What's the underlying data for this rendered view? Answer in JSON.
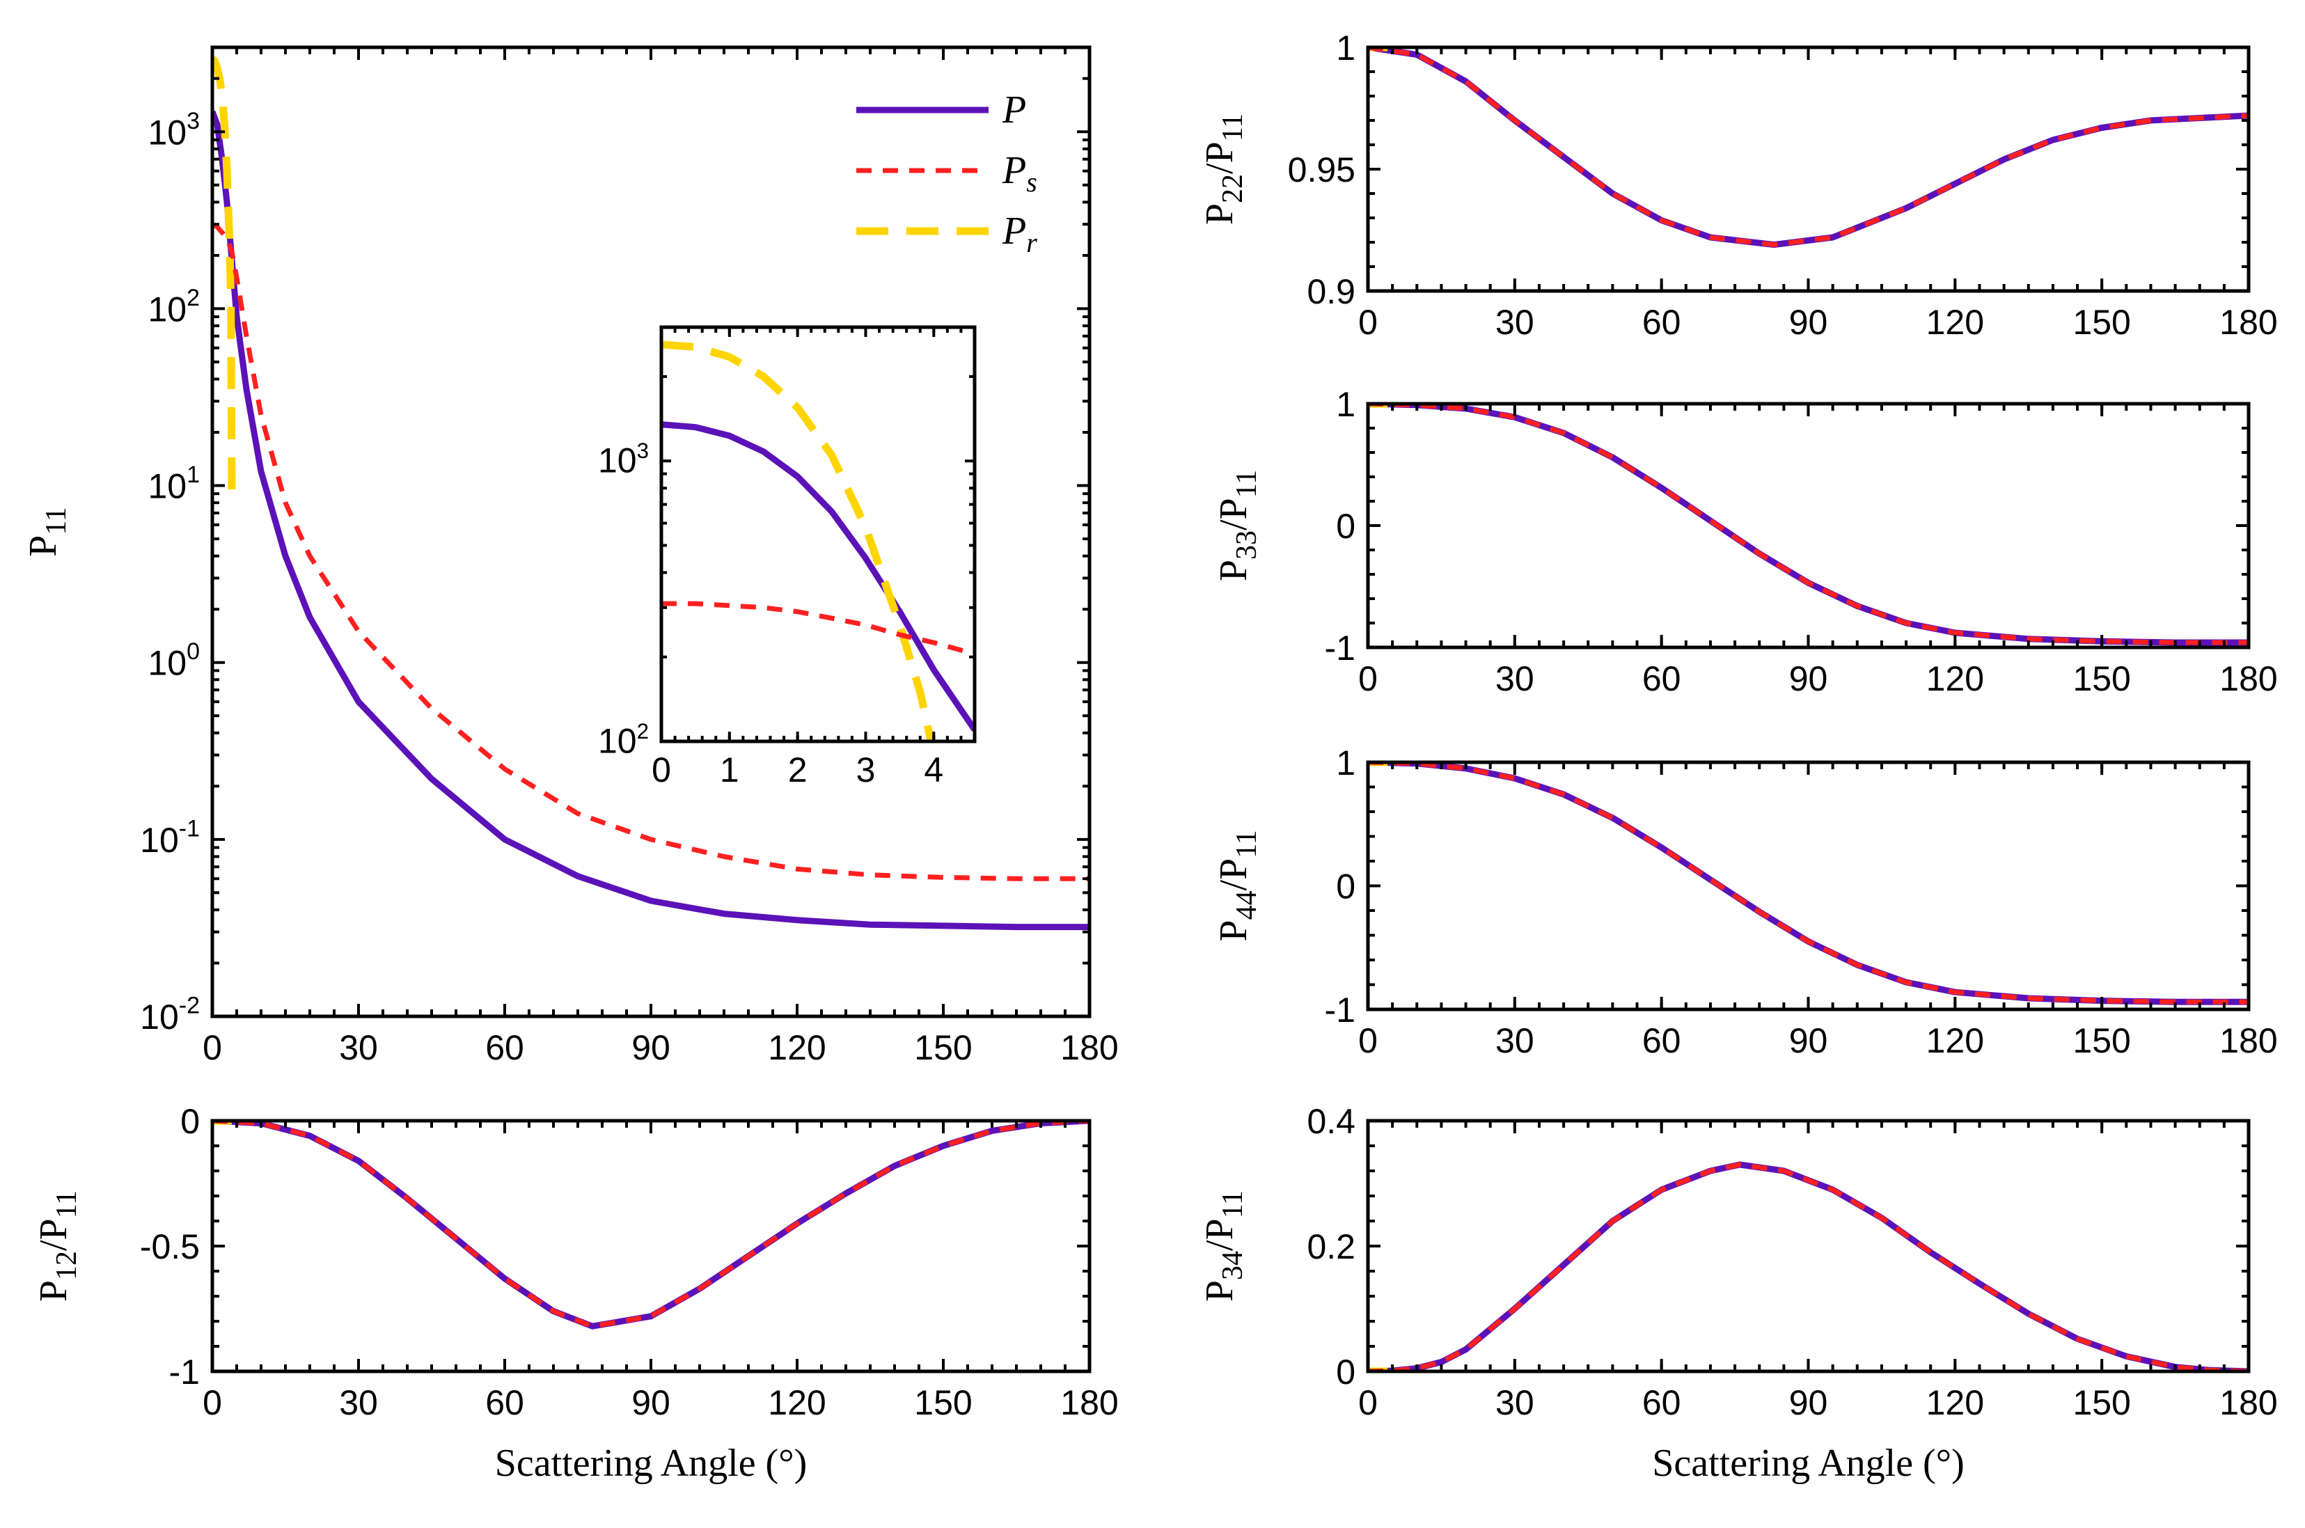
{
  "colors": {
    "P": "#5b12b8",
    "P_s": "#ff2020",
    "P_r": "#ffd400",
    "axis": "#000000"
  },
  "legend": {
    "placement": "top-right of P11 panel",
    "entries": [
      {
        "key": "P",
        "base": "P",
        "sub": "",
        "style": "solid"
      },
      {
        "key": "P_s",
        "base": "P",
        "sub": "s",
        "style": "short-dash"
      },
      {
        "key": "P_r",
        "base": "P",
        "sub": "r",
        "style": "long-dash"
      }
    ]
  },
  "chart_data": [
    {
      "id": "p11",
      "type": "line",
      "yscale": "log",
      "ylabel": {
        "base": "P",
        "sub": "11",
        "tail": ""
      },
      "xlabel": "",
      "xlim": [
        0,
        180
      ],
      "ylim": [
        0.01,
        3000
      ],
      "xticks": [
        0,
        30,
        60,
        90,
        120,
        150,
        180
      ],
      "yticks": [
        {
          "v": 0.01,
          "base": "10",
          "exp": "-2"
        },
        {
          "v": 0.1,
          "base": "10",
          "exp": "-1"
        },
        {
          "v": 1,
          "base": "10",
          "exp": "0"
        },
        {
          "v": 10,
          "base": "10",
          "exp": "1"
        },
        {
          "v": 100,
          "base": "10",
          "exp": "2"
        },
        {
          "v": 1000,
          "base": "10",
          "exp": "3"
        }
      ],
      "series": [
        {
          "key": "P",
          "x": [
            0,
            1,
            2,
            3,
            4,
            5,
            7,
            10,
            15,
            20,
            30,
            45,
            60,
            75,
            90,
            105,
            120,
            135,
            150,
            165,
            180
          ],
          "y": [
            1300,
            1100,
            700,
            400,
            190,
            90,
            35,
            12,
            4,
            1.8,
            0.6,
            0.22,
            0.1,
            0.062,
            0.045,
            0.038,
            0.035,
            0.033,
            0.0325,
            0.032,
            0.032
          ]
        },
        {
          "key": "P_s",
          "x": [
            0,
            1,
            2,
            3,
            4,
            5,
            7,
            10,
            15,
            20,
            30,
            45,
            60,
            75,
            90,
            105,
            120,
            135,
            150,
            165,
            180
          ],
          "y": [
            300,
            290,
            270,
            250,
            210,
            150,
            70,
            25,
            8,
            4,
            1.5,
            0.55,
            0.25,
            0.14,
            0.1,
            0.08,
            0.068,
            0.063,
            0.061,
            0.06,
            0.06
          ]
        },
        {
          "key": "P_r",
          "x": [
            0,
            0.5,
            1,
            1.5,
            2,
            2.5,
            3,
            3.5,
            3.8,
            4
          ],
          "y": [
            2600,
            2500,
            2300,
            2000,
            1600,
            1100,
            600,
            250,
            120,
            9
          ]
        }
      ]
    },
    {
      "id": "inset",
      "type": "line",
      "yscale": "log",
      "ylabel": {
        "base": "",
        "sub": "",
        "tail": ""
      },
      "xlim": [
        0,
        4.6
      ],
      "ylim": [
        100,
        3000
      ],
      "xticks": [
        0,
        1,
        2,
        3,
        4
      ],
      "yticks": [
        {
          "v": 100,
          "base": "10",
          "exp": "2"
        },
        {
          "v": 1000,
          "base": "10",
          "exp": "3"
        }
      ],
      "series": [
        {
          "key": "P",
          "x": [
            0,
            0.5,
            1,
            1.5,
            2,
            2.5,
            3,
            3.5,
            4,
            4.6
          ],
          "y": [
            1350,
            1320,
            1230,
            1080,
            880,
            660,
            450,
            290,
            180,
            110
          ]
        },
        {
          "key": "P_s",
          "x": [
            0,
            0.5,
            1,
            1.5,
            2,
            2.5,
            3,
            3.5,
            4,
            4.6
          ],
          "y": [
            310,
            310,
            305,
            300,
            290,
            275,
            260,
            240,
            225,
            205
          ]
        },
        {
          "key": "P_r",
          "x": [
            0,
            0.5,
            1,
            1.5,
            2,
            2.5,
            3,
            3.5,
            3.8,
            4
          ],
          "y": [
            2600,
            2550,
            2350,
            2000,
            1550,
            1050,
            580,
            260,
            150,
            90
          ]
        }
      ]
    },
    {
      "id": "p12",
      "type": "line",
      "yscale": "linear",
      "ylabel": {
        "base": "P",
        "sub": "12",
        "tail": "/P",
        "sub2": "11"
      },
      "xlabel": "Scattering Angle (°)",
      "xlim": [
        0,
        180
      ],
      "ylim": [
        -1,
        0
      ],
      "xticks": [
        0,
        30,
        60,
        90,
        120,
        150,
        180
      ],
      "yticks": [
        {
          "v": -1,
          "t": "-1"
        },
        {
          "v": -0.5,
          "t": "-0.5"
        },
        {
          "v": 0,
          "t": "0"
        }
      ],
      "series": [
        {
          "key": "P",
          "x": [
            0,
            10,
            20,
            30,
            40,
            50,
            60,
            70,
            78,
            90,
            100,
            110,
            120,
            130,
            140,
            150,
            160,
            170,
            180
          ],
          "y": [
            0,
            -0.01,
            -0.06,
            -0.16,
            -0.31,
            -0.47,
            -0.63,
            -0.76,
            -0.82,
            -0.78,
            -0.67,
            -0.54,
            -0.41,
            -0.29,
            -0.18,
            -0.1,
            -0.04,
            -0.01,
            0
          ]
        },
        {
          "key": "P_s",
          "x": [
            0,
            10,
            20,
            30,
            40,
            50,
            60,
            70,
            78,
            90,
            100,
            110,
            120,
            130,
            140,
            150,
            160,
            170,
            180
          ],
          "y": [
            0,
            -0.01,
            -0.06,
            -0.16,
            -0.31,
            -0.47,
            -0.63,
            -0.76,
            -0.82,
            -0.78,
            -0.67,
            -0.54,
            -0.41,
            -0.29,
            -0.18,
            -0.1,
            -0.04,
            -0.01,
            0
          ]
        },
        {
          "key": "P_r",
          "x": [
            0,
            4
          ],
          "y": [
            0,
            0
          ]
        }
      ]
    },
    {
      "id": "p22",
      "type": "line",
      "yscale": "linear",
      "ylabel": {
        "base": "P",
        "sub": "22",
        "tail": "/P",
        "sub2": "11"
      },
      "xlim": [
        0,
        180
      ],
      "ylim": [
        0.9,
        1
      ],
      "xticks": [
        0,
        30,
        60,
        90,
        120,
        150,
        180
      ],
      "yticks": [
        {
          "v": 0.9,
          "t": "0.9"
        },
        {
          "v": 0.95,
          "t": "0.95"
        },
        {
          "v": 1,
          "t": "1"
        }
      ],
      "series": [
        {
          "key": "P",
          "x": [
            0,
            10,
            20,
            30,
            40,
            50,
            60,
            70,
            83,
            95,
            110,
            120,
            130,
            140,
            150,
            160,
            170,
            180
          ],
          "y": [
            1,
            0.997,
            0.986,
            0.97,
            0.955,
            0.94,
            0.929,
            0.922,
            0.919,
            0.922,
            0.934,
            0.944,
            0.954,
            0.962,
            0.967,
            0.97,
            0.971,
            0.972
          ]
        },
        {
          "key": "P_s",
          "x": [
            0,
            10,
            20,
            30,
            40,
            50,
            60,
            70,
            83,
            95,
            110,
            120,
            130,
            140,
            150,
            160,
            170,
            180
          ],
          "y": [
            1,
            0.997,
            0.986,
            0.97,
            0.955,
            0.94,
            0.929,
            0.922,
            0.919,
            0.922,
            0.934,
            0.944,
            0.954,
            0.962,
            0.967,
            0.97,
            0.971,
            0.972
          ]
        },
        {
          "key": "P_r",
          "x": [
            0,
            4
          ],
          "y": [
            1,
            1
          ]
        }
      ]
    },
    {
      "id": "p33",
      "type": "line",
      "yscale": "linear",
      "ylabel": {
        "base": "P",
        "sub": "33",
        "tail": "/P",
        "sub2": "11"
      },
      "xlim": [
        0,
        180
      ],
      "ylim": [
        -1,
        1
      ],
      "xticks": [
        0,
        30,
        60,
        90,
        120,
        150,
        180
      ],
      "yticks": [
        {
          "v": -1,
          "t": "-1"
        },
        {
          "v": 0,
          "t": "0"
        },
        {
          "v": 1,
          "t": "1"
        }
      ],
      "series": [
        {
          "key": "P",
          "x": [
            0,
            10,
            20,
            30,
            40,
            50,
            60,
            70,
            80,
            90,
            100,
            110,
            120,
            135,
            150,
            165,
            180
          ],
          "y": [
            1,
            0.99,
            0.96,
            0.89,
            0.76,
            0.56,
            0.31,
            0.04,
            -0.23,
            -0.47,
            -0.66,
            -0.8,
            -0.88,
            -0.93,
            -0.95,
            -0.96,
            -0.96
          ]
        },
        {
          "key": "P_s",
          "x": [
            0,
            10,
            20,
            30,
            40,
            50,
            60,
            70,
            80,
            90,
            100,
            110,
            120,
            135,
            150,
            165,
            180
          ],
          "y": [
            1,
            0.99,
            0.96,
            0.89,
            0.76,
            0.56,
            0.31,
            0.04,
            -0.23,
            -0.47,
            -0.66,
            -0.8,
            -0.88,
            -0.93,
            -0.95,
            -0.96,
            -0.96
          ]
        },
        {
          "key": "P_r",
          "x": [
            0,
            4
          ],
          "y": [
            1,
            1
          ]
        }
      ]
    },
    {
      "id": "p44",
      "type": "line",
      "yscale": "linear",
      "ylabel": {
        "base": "P",
        "sub": "44",
        "tail": "/P",
        "sub2": "11"
      },
      "xlim": [
        0,
        180
      ],
      "ylim": [
        -1,
        1
      ],
      "xticks": [
        0,
        30,
        60,
        90,
        120,
        150,
        180
      ],
      "yticks": [
        {
          "v": -1,
          "t": "-1"
        },
        {
          "v": 0,
          "t": "0"
        },
        {
          "v": 1,
          "t": "1"
        }
      ],
      "series": [
        {
          "key": "P",
          "x": [
            0,
            10,
            20,
            30,
            40,
            50,
            60,
            70,
            80,
            90,
            100,
            110,
            120,
            135,
            150,
            165,
            180
          ],
          "y": [
            1,
            0.99,
            0.95,
            0.87,
            0.74,
            0.55,
            0.31,
            0.05,
            -0.21,
            -0.45,
            -0.64,
            -0.78,
            -0.86,
            -0.91,
            -0.93,
            -0.94,
            -0.94
          ]
        },
        {
          "key": "P_s",
          "x": [
            0,
            10,
            20,
            30,
            40,
            50,
            60,
            70,
            80,
            90,
            100,
            110,
            120,
            135,
            150,
            165,
            180
          ],
          "y": [
            1,
            0.99,
            0.95,
            0.87,
            0.74,
            0.55,
            0.31,
            0.05,
            -0.21,
            -0.45,
            -0.64,
            -0.78,
            -0.86,
            -0.91,
            -0.93,
            -0.94,
            -0.94
          ]
        },
        {
          "key": "P_r",
          "x": [
            0,
            4
          ],
          "y": [
            1,
            1
          ]
        }
      ]
    },
    {
      "id": "p34",
      "type": "line",
      "yscale": "linear",
      "ylabel": {
        "base": "P",
        "sub": "34",
        "tail": "/P",
        "sub2": "11"
      },
      "xlabel": "Scattering Angle (°)",
      "xlim": [
        0,
        180
      ],
      "ylim": [
        0,
        0.4
      ],
      "xticks": [
        0,
        30,
        60,
        90,
        120,
        150,
        180
      ],
      "yticks": [
        {
          "v": 0,
          "t": "0"
        },
        {
          "v": 0.2,
          "t": "0.2"
        },
        {
          "v": 0.4,
          "t": "0.4"
        }
      ],
      "series": [
        {
          "key": "P",
          "x": [
            0,
            5,
            10,
            15,
            20,
            30,
            40,
            50,
            60,
            70,
            76,
            85,
            95,
            105,
            115,
            125,
            135,
            145,
            155,
            165,
            172,
            180
          ],
          "y": [
            0,
            0.001,
            0.005,
            0.015,
            0.035,
            0.1,
            0.17,
            0.24,
            0.29,
            0.32,
            0.33,
            0.32,
            0.29,
            0.245,
            0.19,
            0.14,
            0.092,
            0.052,
            0.024,
            0.007,
            0.002,
            0
          ]
        },
        {
          "key": "P_s",
          "x": [
            0,
            5,
            10,
            15,
            20,
            30,
            40,
            50,
            60,
            70,
            76,
            85,
            95,
            105,
            115,
            125,
            135,
            145,
            155,
            165,
            172,
            180
          ],
          "y": [
            0,
            0.001,
            0.005,
            0.015,
            0.035,
            0.1,
            0.17,
            0.24,
            0.29,
            0.32,
            0.33,
            0.32,
            0.29,
            0.245,
            0.19,
            0.14,
            0.092,
            0.052,
            0.024,
            0.007,
            0.002,
            0
          ]
        },
        {
          "key": "P_r",
          "x": [
            0,
            4
          ],
          "y": [
            0,
            0
          ]
        }
      ]
    }
  ]
}
